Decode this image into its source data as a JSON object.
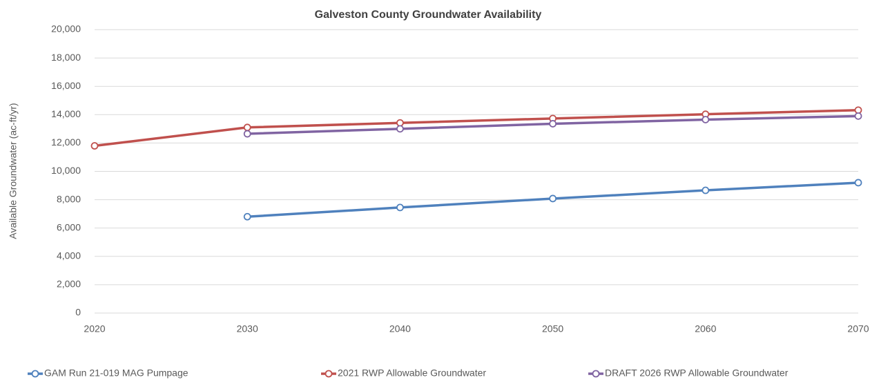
{
  "chart_data": {
    "type": "line",
    "title": "Galveston County Groundwater Availability",
    "y_label": "Available Groundwater (ac-ft/yr)",
    "x": [
      2020,
      2030,
      2040,
      2050,
      2060,
      2070
    ],
    "series": [
      {
        "name": "GAM Run 21-019 MAG Pumpage",
        "color": "#4f81bd",
        "values": [
          null,
          6800,
          7450,
          8080,
          8660,
          9200
        ]
      },
      {
        "name": "2021 RWP Allowable Groundwater",
        "color": "#c0504d",
        "values": [
          11800,
          13100,
          13420,
          13730,
          14030,
          14320
        ]
      },
      {
        "name": "DRAFT 2026 RWP Allowable Groundwater",
        "color": "#8064a2",
        "values": [
          null,
          12650,
          13000,
          13360,
          13650,
          13900
        ]
      }
    ],
    "xlim": [
      2020,
      2070
    ],
    "xticks": [
      2020,
      2030,
      2040,
      2050,
      2060,
      2070
    ],
    "ylim": [
      0,
      20000
    ],
    "yticks": [
      0,
      {
        "value": 2000,
        "label": "2,000"
      },
      {
        "value": 4000,
        "label": "4,000"
      },
      {
        "value": 6000,
        "label": "6,000"
      },
      {
        "value": 8000,
        "label": "8,000"
      },
      {
        "value": 10000,
        "label": "10,000"
      },
      {
        "value": 12000,
        "label": "12,000"
      },
      {
        "value": 14000,
        "label": "14,000"
      },
      {
        "value": 16000,
        "label": "16,000"
      },
      {
        "value": 18000,
        "label": "18,000"
      },
      {
        "value": 20000,
        "label": "20,000"
      }
    ],
    "grid": true,
    "legend": "bottom"
  }
}
